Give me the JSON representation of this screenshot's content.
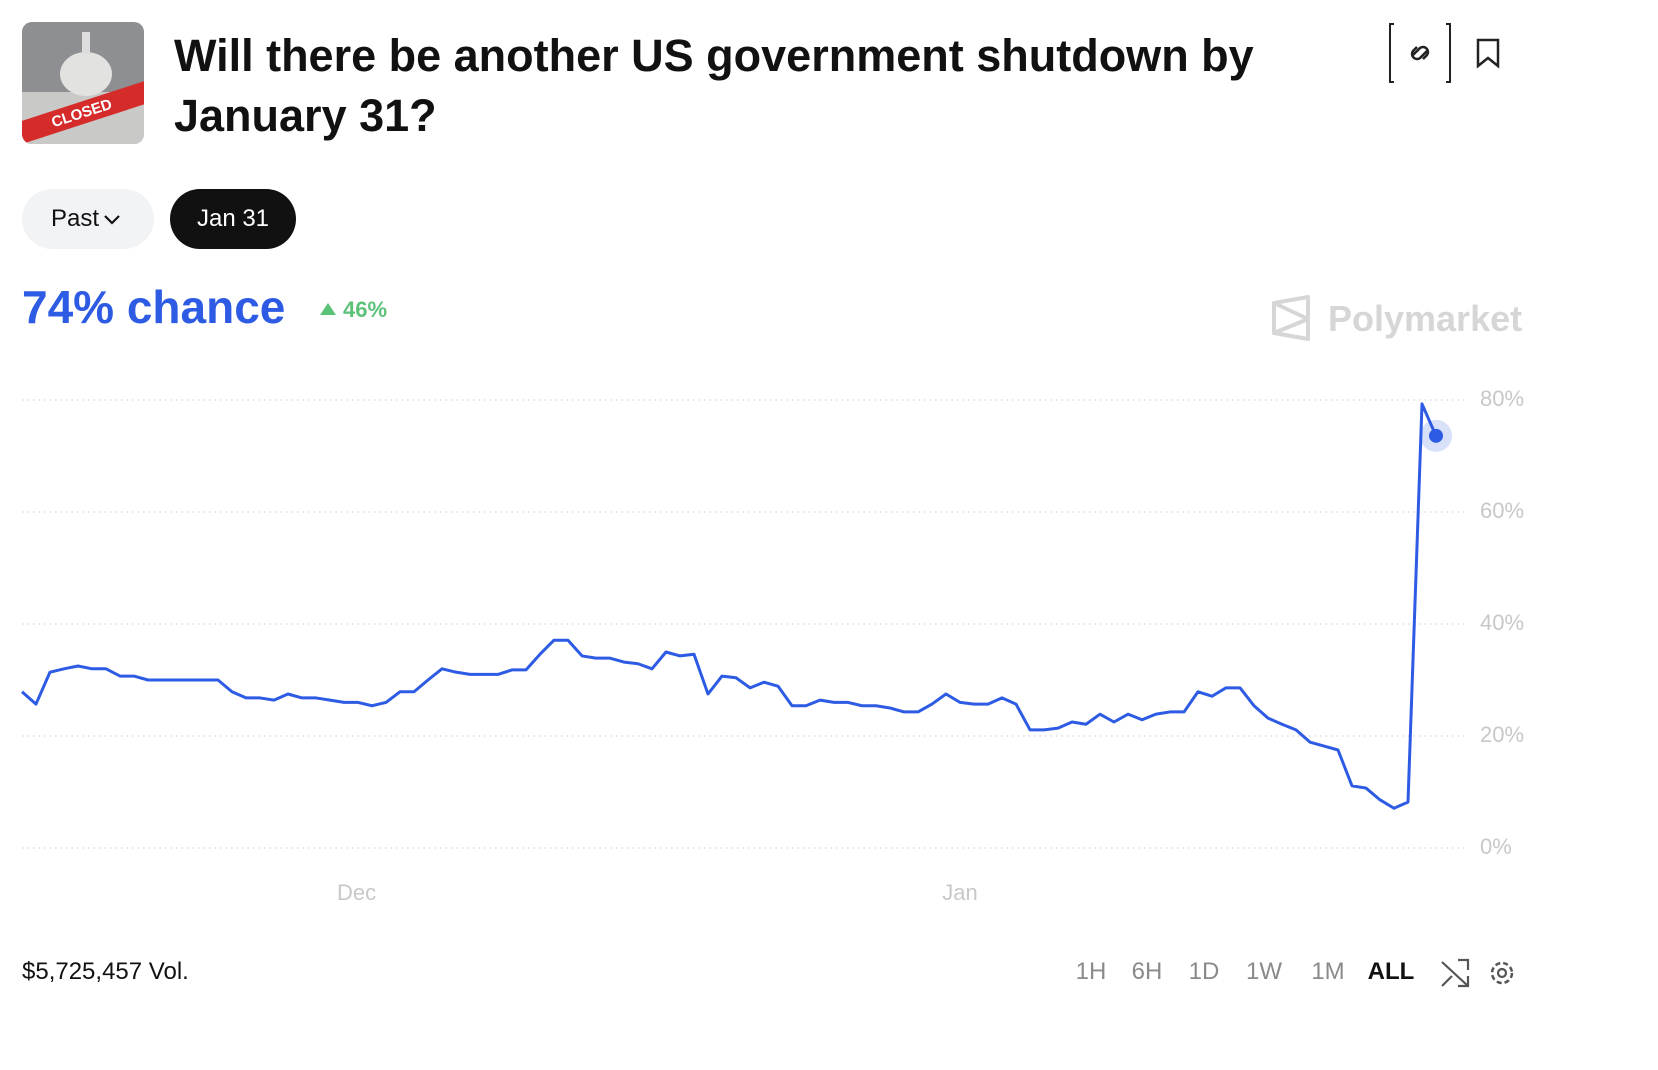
{
  "header": {
    "title": "Will there be another US government shutdown by January 31?",
    "image_text": "CLOSED"
  },
  "filters": [
    "Past",
    "Jan 31"
  ],
  "headline": {
    "chance": "74% chance",
    "change": "46%"
  },
  "brand": "Polymarket",
  "chart_data": {
    "type": "line",
    "color": "#2d5be3",
    "values": [
      27.9,
      25.7,
      31.4,
      32,
      32.5,
      32,
      32,
      30.7,
      30.7,
      30,
      30,
      30,
      30,
      30,
      30,
      27.9,
      26.8,
      26.8,
      26.4,
      27.5,
      26.8,
      26.8,
      26.4,
      26,
      26,
      25.4,
      26,
      27.9,
      27.9,
      30,
      32,
      31.4,
      31,
      31,
      31,
      31.8,
      31.8,
      34.6,
      37.1,
      37.1,
      34.3,
      33.9,
      33.9,
      33.2,
      32.9,
      32,
      35,
      34.3,
      34.6,
      27.5,
      30.7,
      30.4,
      28.6,
      29.6,
      28.9,
      25.4,
      25.4,
      26.4,
      26,
      26,
      25.4,
      25.4,
      25,
      24.3,
      24.3,
      25.7,
      27.5,
      26,
      25.7,
      25.7,
      26.8,
      25.7,
      21.1,
      21.1,
      21.4,
      22.5,
      22.1,
      23.9,
      22.5,
      23.9,
      22.9,
      23.9,
      24.3,
      24.3,
      27.9,
      27.1,
      28.6,
      28.6,
      25.4,
      23.2,
      22.1,
      21.1,
      18.9,
      18.2,
      17.5,
      11.1,
      10.7,
      8.6,
      7.1,
      8.2,
      79.3,
      73.6
    ],
    "xlim": [
      0,
      101
    ],
    "xticks": [
      {
        "value": 23.9,
        "label": "Dec"
      },
      {
        "value": 67,
        "label": "Jan"
      }
    ],
    "ylim": [
      0,
      80
    ],
    "yticks": [
      {
        "value": 0,
        "label": "0%"
      },
      {
        "value": 20,
        "label": "20%"
      },
      {
        "value": 40,
        "label": "40%"
      },
      {
        "value": 60,
        "label": "60%"
      },
      {
        "value": 80,
        "label": "80%"
      }
    ],
    "grid": true
  },
  "volume": "$5,725,457 Vol.",
  "timeframes": [
    "1H",
    "6H",
    "1D",
    "1W",
    "1M",
    "ALL"
  ]
}
